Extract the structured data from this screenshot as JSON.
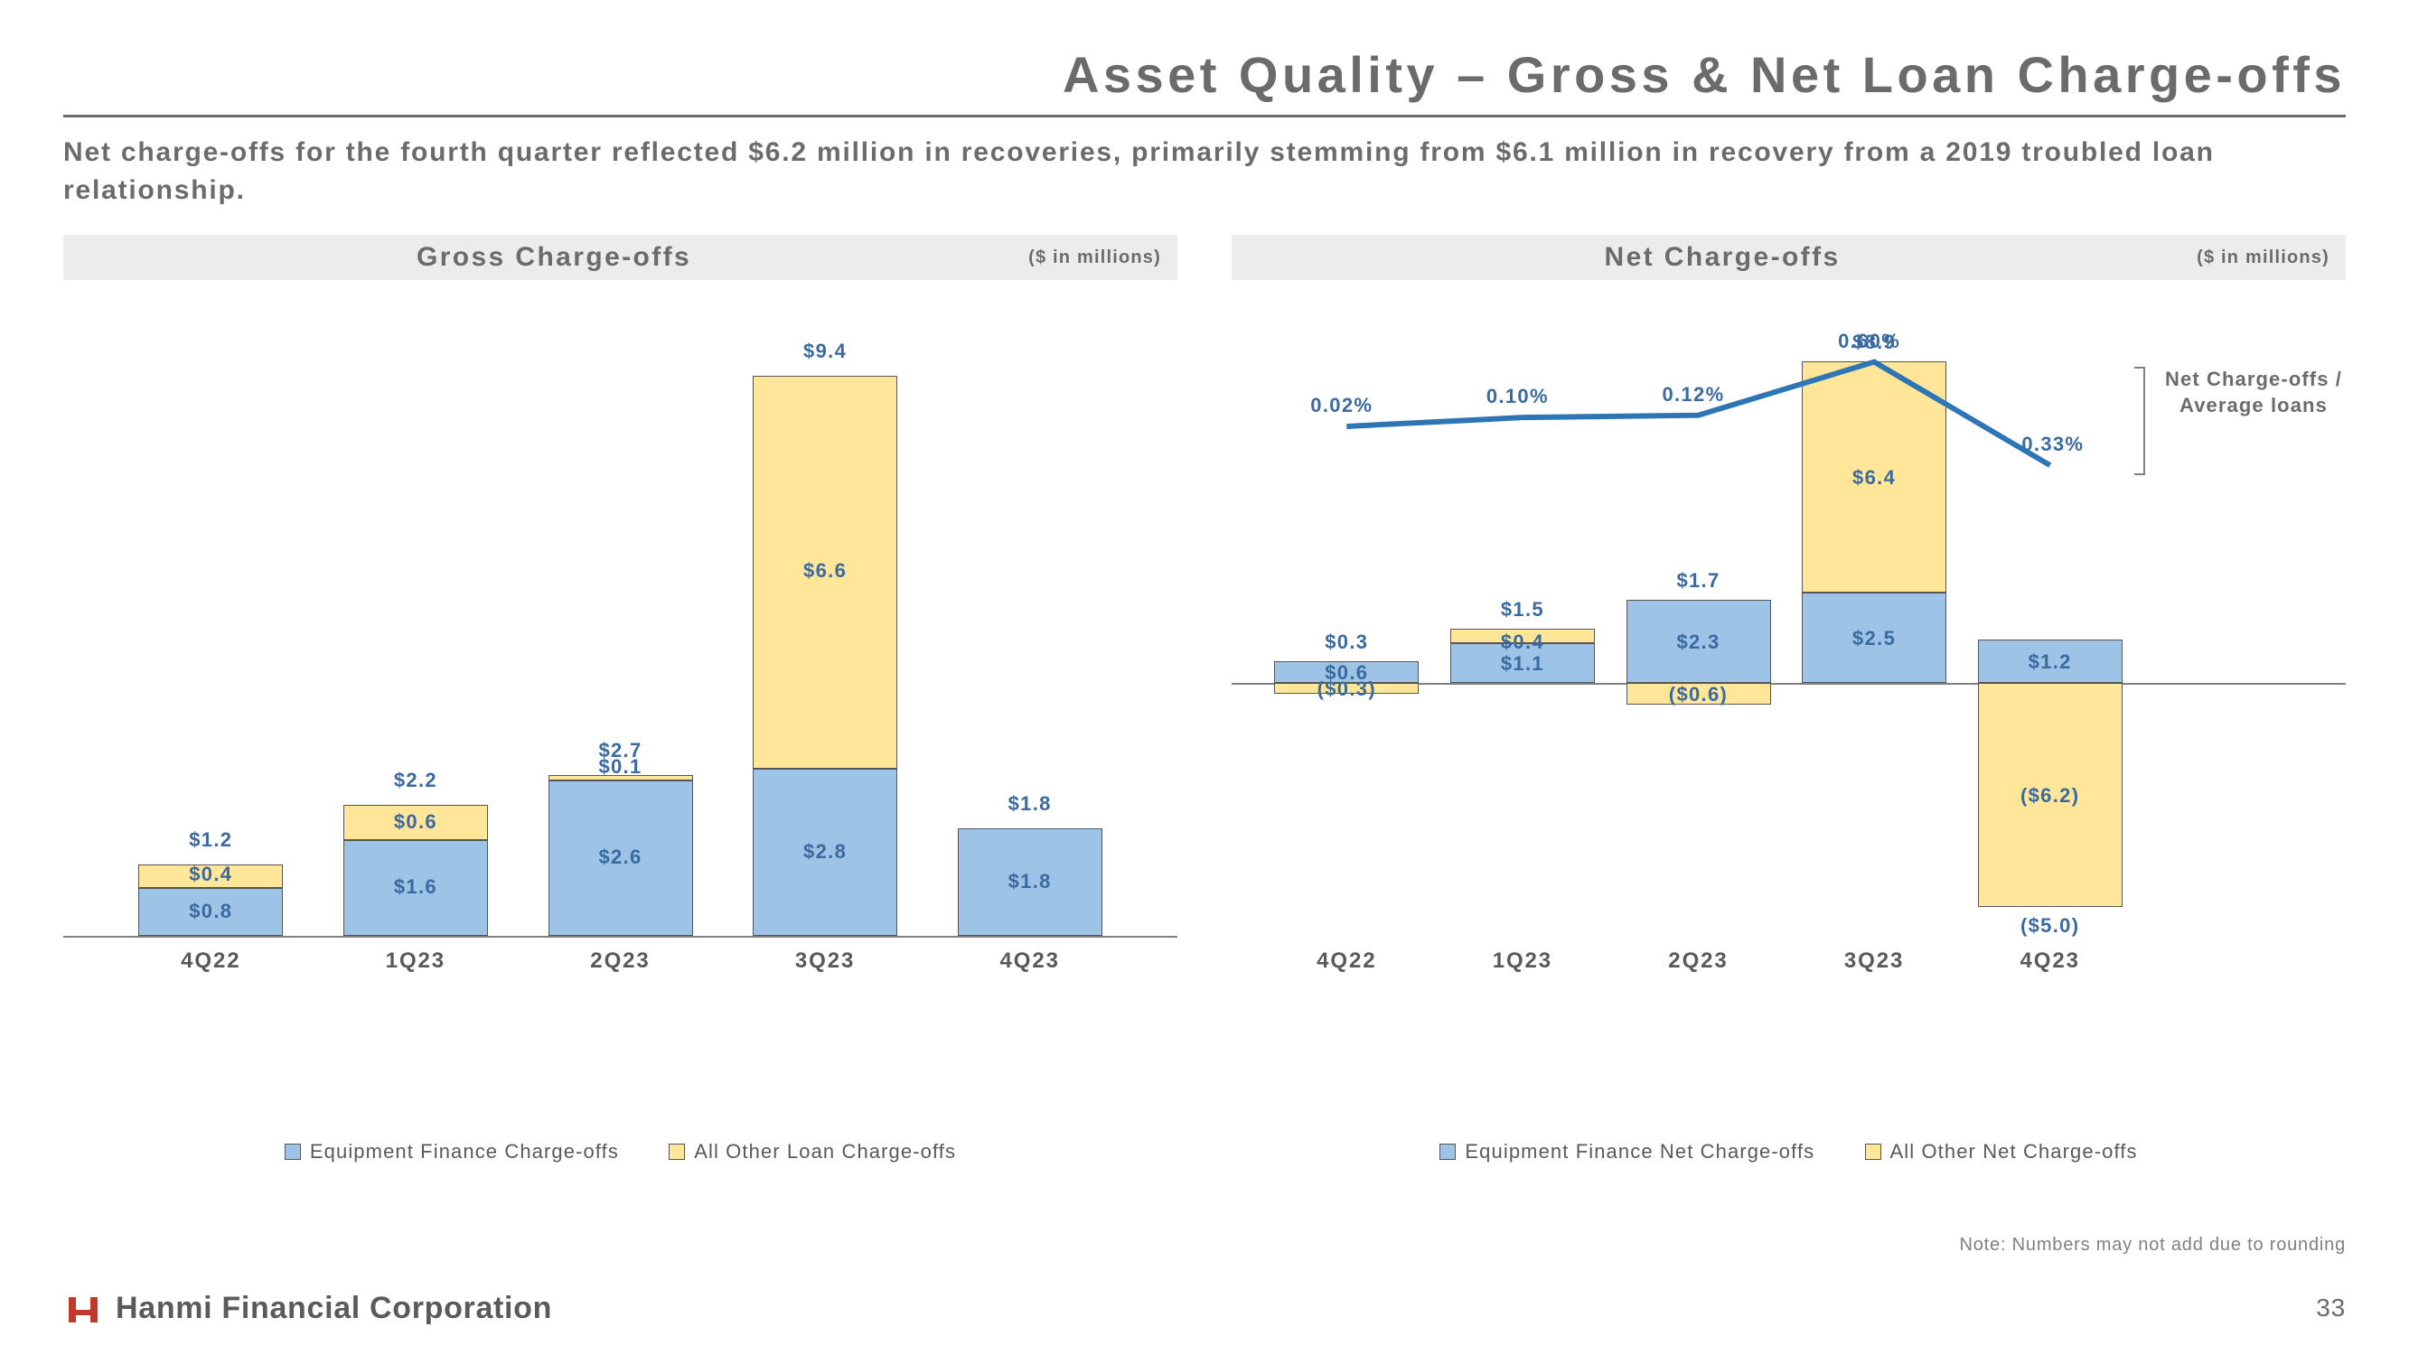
{
  "title": "Asset Quality – Gross & Net Loan Charge-offs",
  "subtitle": "Net charge-offs for the fourth quarter reflected $6.2 million in recoveries, primarily stemming from $6.1 million in recovery from a 2019 troubled loan relationship.",
  "colors": {
    "blue": "#9dc3e6",
    "yellow": "#ffe699",
    "line": "#2e75b6",
    "text_gray": "#6b6b6b",
    "label_blue": "#3b6aa0"
  },
  "left_chart": {
    "title": "Gross Charge-offs",
    "unit": "($ in millions)",
    "type": "stacked-bar",
    "categories": [
      "4Q22",
      "1Q23",
      "2Q23",
      "3Q23",
      "4Q23"
    ],
    "totals": [
      "$1.2",
      "$2.2",
      "$2.7",
      "$9.4",
      "$1.8"
    ],
    "equipment": {
      "values": [
        0.8,
        1.6,
        2.6,
        2.8,
        1.8
      ],
      "labels": [
        "$0.8",
        "$1.6",
        "$2.6",
        "$2.8",
        "$1.8"
      ]
    },
    "other": {
      "values": [
        0.4,
        0.6,
        0.1,
        6.6,
        0.0
      ],
      "labels": [
        "$0.4",
        "$0.6",
        "$0.1",
        "$6.6",
        ""
      ]
    },
    "y_max": 10.0,
    "y_min": 0.0,
    "legend": [
      "Equipment Finance Charge-offs",
      "All Other Loan Charge-offs"
    ]
  },
  "right_chart": {
    "title": "Net Charge-offs",
    "unit": "($ in millions)",
    "type": "stacked-bar-with-line",
    "categories": [
      "4Q22",
      "1Q23",
      "2Q23",
      "3Q23",
      "4Q23"
    ],
    "totals": [
      "$0.3",
      "$1.5",
      "$1.7",
      "$8.9",
      "($5.0)"
    ],
    "equipment": {
      "values": [
        0.6,
        1.1,
        2.3,
        2.5,
        1.2
      ],
      "labels": [
        "$0.6",
        "$1.1",
        "$2.3",
        "$2.5",
        "$1.2"
      ]
    },
    "other": {
      "values": [
        -0.3,
        0.4,
        -0.6,
        6.4,
        -6.2
      ],
      "labels": [
        "($0.3)",
        "$0.4",
        "($0.6)",
        "$6.4",
        "($6.2)"
      ]
    },
    "y_max": 10.0,
    "y_min": -7.0,
    "line": {
      "values_pct": [
        0.02,
        0.1,
        0.12,
        0.6,
        -0.33
      ],
      "labels": [
        "0.02%",
        "0.10%",
        "0.12%",
        "0.60%",
        "-0.33%"
      ],
      "legend": "Net Charge-offs / Average loans"
    },
    "legend": [
      "Equipment Finance Net Charge-offs",
      "All Other Net Charge-offs"
    ]
  },
  "footnote": "Note: Numbers may not add due to rounding",
  "footer": {
    "company": "Hanmi Financial Corporation",
    "page": "33"
  }
}
